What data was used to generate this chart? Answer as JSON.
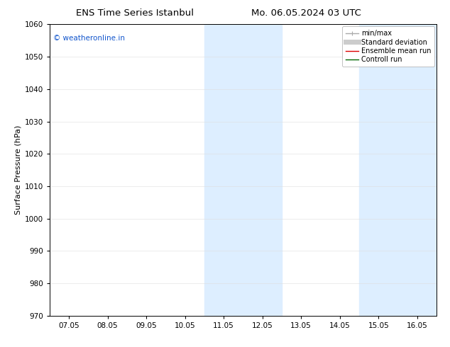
{
  "title_left": "ENS Time Series Istanbul",
  "title_right": "Mo. 06.05.2024 03 UTC",
  "ylabel": "Surface Pressure (hPa)",
  "ylim": [
    970,
    1060
  ],
  "yticks": [
    970,
    980,
    990,
    1000,
    1010,
    1020,
    1030,
    1040,
    1050,
    1060
  ],
  "x_tick_labels": [
    "07.05",
    "08.05",
    "09.05",
    "10.05",
    "11.05",
    "12.05",
    "13.05",
    "14.05",
    "15.05",
    "16.05"
  ],
  "x_tick_positions": [
    0,
    1,
    2,
    3,
    4,
    5,
    6,
    7,
    8,
    9
  ],
  "xlim": [
    -0.5,
    9.5
  ],
  "shaded_regions": [
    {
      "x_start": 3.5,
      "x_end": 5.5
    },
    {
      "x_start": 7.5,
      "x_end": 9.5
    }
  ],
  "shaded_color": "#ddeeff",
  "watermark_text": "© weatheronline.in",
  "watermark_color": "#1155cc",
  "background_color": "#ffffff",
  "legend_items": [
    {
      "label": "min/max",
      "color": "#aaaaaa",
      "lw": 1.0
    },
    {
      "label": "Standard deviation",
      "color": "#cccccc",
      "lw": 5
    },
    {
      "label": "Ensemble mean run",
      "color": "#dd0000",
      "lw": 1.0
    },
    {
      "label": "Controll run",
      "color": "#006600",
      "lw": 1.0
    }
  ],
  "spine_color": "#000000",
  "tick_color": "#000000",
  "grid_color": "#dddddd",
  "title_fontsize": 9.5,
  "axis_label_fontsize": 8,
  "tick_fontsize": 7.5,
  "watermark_fontsize": 7.5,
  "legend_fontsize": 7.0
}
